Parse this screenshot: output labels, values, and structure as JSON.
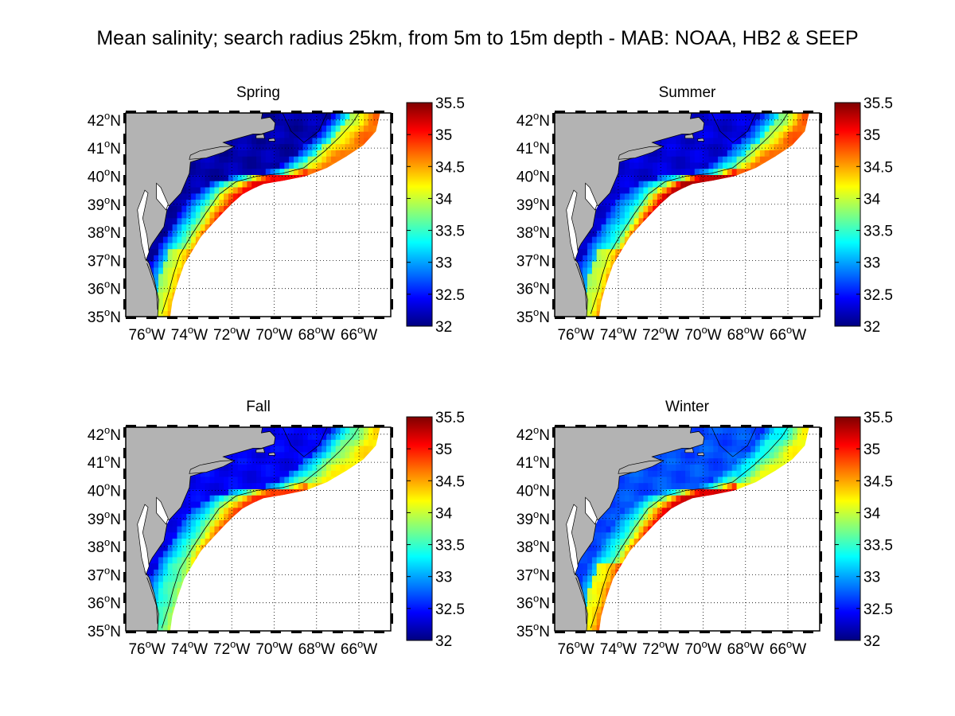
{
  "figure": {
    "title": "Mean salinity; search radius 25km, from 5m to 15m depth - MAB: NOAA, HB2 & SEEP"
  },
  "axes": {
    "lat_labels": [
      {
        "deg": "35",
        "hemi": "N",
        "value": 35
      },
      {
        "deg": "36",
        "hemi": "N",
        "value": 36
      },
      {
        "deg": "37",
        "hemi": "N",
        "value": 37
      },
      {
        "deg": "38",
        "hemi": "N",
        "value": 38
      },
      {
        "deg": "39",
        "hemi": "N",
        "value": 39
      },
      {
        "deg": "40",
        "hemi": "N",
        "value": 40
      },
      {
        "deg": "41",
        "hemi": "N",
        "value": 41
      },
      {
        "deg": "42",
        "hemi": "N",
        "value": 42
      }
    ],
    "lon_labels": [
      {
        "deg": "76",
        "hemi": "W",
        "value": -76
      },
      {
        "deg": "74",
        "hemi": "W",
        "value": -74
      },
      {
        "deg": "72",
        "hemi": "W",
        "value": -72
      },
      {
        "deg": "70",
        "hemi": "W",
        "value": -70
      },
      {
        "deg": "68",
        "hemi": "W",
        "value": -68
      },
      {
        "deg": "66",
        "hemi": "W",
        "value": -66
      }
    ],
    "lon_range": [
      -77,
      -64.5
    ],
    "lat_range": [
      35,
      42.25
    ],
    "grid": true
  },
  "colorbar": {
    "range": [
      32,
      35.5
    ],
    "ticks": [
      "35.5",
      "35",
      "34.5",
      "34",
      "33.5",
      "33",
      "32.5",
      "32"
    ],
    "tick_values": [
      35.5,
      35,
      34.5,
      34,
      33.5,
      33,
      32.5,
      32
    ],
    "colormap": "jet",
    "colors": [
      "#00008f",
      "#0000ff",
      "#00ffff",
      "#ffff00",
      "#ff0000",
      "#800000"
    ]
  },
  "colors": {
    "land": "#b3b3b3",
    "coast": "#000000",
    "no_data": "#ffffff"
  },
  "panels": [
    {
      "id": "spring",
      "title": "Spring",
      "shelf": 32.15,
      "outer": 32.45,
      "break": 33.9,
      "slope": 35.1,
      "south_break": 34.6,
      "east_slope": 34.2
    },
    {
      "id": "summer",
      "title": "Summer",
      "shelf": 32.3,
      "outer": 32.6,
      "break": 33.6,
      "slope": 35.3,
      "south_break": 34.9,
      "east_slope": 34.1
    },
    {
      "id": "fall",
      "title": "Fall",
      "shelf": 32.4,
      "outer": 32.7,
      "break": 33.8,
      "slope": 34.9,
      "south_break": 33.5,
      "east_slope": 33.6
    },
    {
      "id": "winter",
      "title": "Winter",
      "shelf": 32.7,
      "outer": 32.6,
      "break": 33.7,
      "slope": 35.2,
      "south_break": 35.3,
      "east_slope": 33.1
    }
  ]
}
